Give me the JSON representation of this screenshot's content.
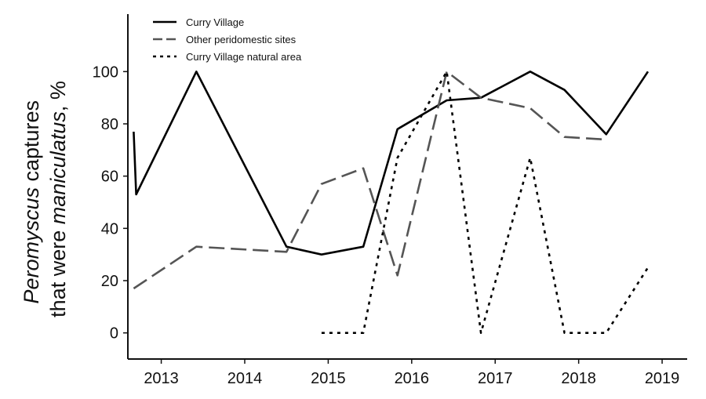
{
  "chart_data": {
    "type": "line",
    "title": "",
    "ylabel_parts": {
      "line1_italic": "Peromyscus",
      "line1_rest": " captures",
      "line2_start": "that were ",
      "line2_italic": "maniculatus",
      "line2_end": ", %"
    },
    "xlabel": "",
    "xlim": [
      2012.6,
      2019.3
    ],
    "ylim": [
      -10,
      122
    ],
    "x_ticks": [
      2013,
      2014,
      2015,
      2016,
      2017,
      2018,
      2019
    ],
    "x_tick_labels": [
      "2013",
      "2014",
      "2015",
      "2016",
      "2017",
      "2018",
      "2019"
    ],
    "y_ticks": [
      0,
      20,
      40,
      60,
      80,
      100
    ],
    "y_tick_labels": [
      "0",
      "20",
      "40",
      "60",
      "80",
      "100"
    ],
    "grid": false,
    "legend_position": "top-left",
    "series": [
      {
        "name": "Curry Village",
        "color": "#000000",
        "style": "solid",
        "points": [
          [
            2012.67,
            77
          ],
          [
            2012.7,
            53
          ],
          [
            2013.42,
            100
          ],
          [
            2014.5,
            33
          ],
          [
            2014.92,
            30
          ],
          [
            2015.42,
            33
          ],
          [
            2015.83,
            78
          ],
          [
            2016.42,
            89
          ],
          [
            2016.83,
            90
          ],
          [
            2017.42,
            100
          ],
          [
            2017.83,
            93
          ],
          [
            2018.33,
            76
          ],
          [
            2018.83,
            100
          ]
        ]
      },
      {
        "name": "Other peridomestic sites",
        "color": "#555555",
        "style": "dashed",
        "points": [
          [
            2012.67,
            17
          ],
          [
            2013.42,
            33
          ],
          [
            2014.5,
            31
          ],
          [
            2014.92,
            57
          ],
          [
            2015.42,
            63
          ],
          [
            2015.83,
            22
          ],
          [
            2016.42,
            100
          ],
          [
            2016.83,
            90
          ],
          [
            2017.42,
            86
          ],
          [
            2017.83,
            75
          ],
          [
            2018.33,
            74
          ]
        ]
      },
      {
        "name": "Curry Village natural area",
        "color": "#000000",
        "style": "dotted",
        "points": [
          [
            2014.92,
            0
          ],
          [
            2015.42,
            0
          ],
          [
            2015.83,
            67
          ],
          [
            2016.42,
            100
          ],
          [
            2016.83,
            0
          ],
          [
            2017.42,
            67
          ],
          [
            2017.83,
            0
          ],
          [
            2018.33,
            0
          ],
          [
            2018.83,
            25
          ]
        ]
      }
    ]
  }
}
